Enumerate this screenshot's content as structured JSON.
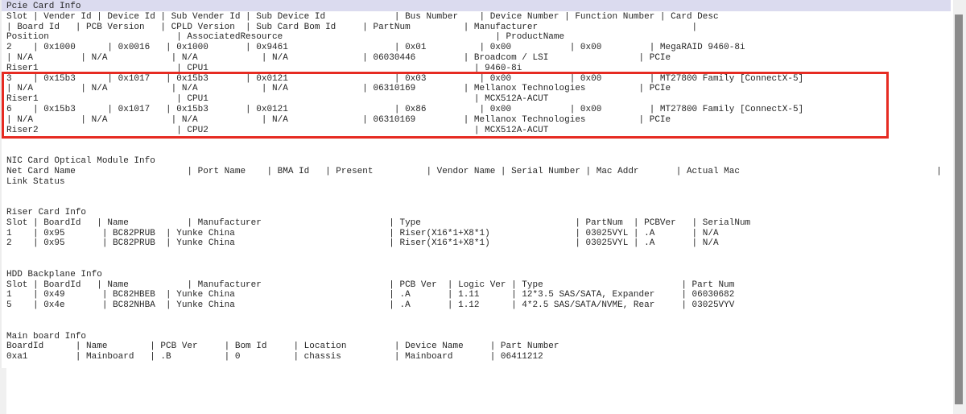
{
  "screen": {
    "lines": [
      "Pcie Card Info",
      "Slot | Vender Id | Device Id | Sub Vender Id | Sub Device Id             | Bus Number    | Device Number | Function Number | Card Desc",
      "| Board Id   | PCB Version   | CPLD Version  | Sub Card Bom Id     | PartNum          | Manufacturer                             |",
      "Position                        | AssociatedResource                                        | ProductName",
      "2    | 0x1000      | 0x0016   | 0x1000       | 0x9461                    | 0x01          | 0x00           | 0x00         | MegaRAID 9460-8i",
      "| N/A         | N/A            | N/A            | N/A              | 06030446         | Broadcom / LSI                 | PCIe",
      "Riser1                          | CPU1                                                  | 9460-8i",
      "3    | 0x15b3      | 0x1017   | 0x15b3       | 0x0121                    | 0x03          | 0x00           | 0x00         | MT27800 Family [ConnectX-5]",
      "| N/A         | N/A            | N/A            | N/A              | 06310169         | Mellanox Technologies          | PCIe",
      "Riser1                          | CPU1                                                  | MCX512A-ACUT",
      "6    | 0x15b3      | 0x1017   | 0x15b3       | 0x0121                    | 0x86          | 0x00           | 0x00         | MT27800 Family [ConnectX-5]",
      "| N/A         | N/A            | N/A            | N/A              | 06310169         | Mellanox Technologies          | PCIe",
      "Riser2                          | CPU2                                                  | MCX512A-ACUT",
      "",
      "",
      "NIC Card Optical Module Info",
      "Net Card Name                     | Port Name    | BMA Id   | Present          | Vendor Name | Serial Number | Mac Addr       | Actual Mac                                     |",
      "Link Status",
      "",
      "",
      "Riser Card Info",
      "Slot | BoardId   | Name           | Manufacturer                        | Type                             | PartNum  | PCBVer   | SerialNum",
      "1    | 0x95       | BC82PRUB  | Yunke China                             | Riser(X16*1+X8*1)                | 03025VYL | .A       | N/A",
      "2    | 0x95       | BC82PRUB  | Yunke China                             | Riser(X16*1+X8*1)                | 03025VYL | .A       | N/A",
      "",
      "",
      "HDD Backplane Info",
      "Slot | BoardId   | Name           | Manufacturer                        | PCB Ver  | Logic Ver | Type                          | Part Num",
      "1    | 0x49       | BC82HBEB  | Yunke China                             | .A       | 1.11      | 12*3.5 SAS/SATA, Expander     | 06030682",
      "5    | 0x4e       | BC82NHBA  | Yunke China                             | .A       | 1.12      | 4*2.5 SAS/SATA/NVME, Rear     | 03025VYV",
      "",
      "",
      "Main board Info",
      "BoardId      | Name        | PCB Ver     | Bom Id     | Location         | Device Name     | Part Number",
      "0xa1         | Mainboard   | .B          | 0          | chassis          | Mainboard       | 06411212"
    ]
  },
  "tables": {
    "pcie_card_info": {
      "title": "Pcie Card Info",
      "columns_line1": [
        "Slot",
        "Vender Id",
        "Device Id",
        "Sub Vender Id",
        "Sub Device Id",
        "Bus Number",
        "Device Number",
        "Function Number",
        "Card Desc"
      ],
      "columns_line2": [
        "Board Id",
        "PCB Version",
        "CPLD Version",
        "Sub Card Bom Id",
        "PartNum",
        "Manufacturer"
      ],
      "columns_line3": [
        "Position",
        "AssociatedResource",
        "ProductName"
      ],
      "rows": [
        {
          "line1": [
            "2",
            "0x1000",
            "0x0016",
            "0x1000",
            "0x9461",
            "0x01",
            "0x00",
            "0x00",
            "MegaRAID 9460-8i"
          ],
          "line2": [
            "N/A",
            "N/A",
            "N/A",
            "N/A",
            "06030446",
            "Broadcom / LSI",
            "PCIe"
          ],
          "line3": [
            "Riser1",
            "CPU1",
            "9460-8i"
          ],
          "highlighted": false
        },
        {
          "line1": [
            "3",
            "0x15b3",
            "0x1017",
            "0x15b3",
            "0x0121",
            "0x03",
            "0x00",
            "0x00",
            "MT27800 Family [ConnectX-5]"
          ],
          "line2": [
            "N/A",
            "N/A",
            "N/A",
            "N/A",
            "06310169",
            "Mellanox Technologies",
            "PCIe"
          ],
          "line3": [
            "Riser1",
            "CPU1",
            "MCX512A-ACUT"
          ],
          "highlighted": true
        },
        {
          "line1": [
            "6",
            "0x15b3",
            "0x1017",
            "0x15b3",
            "0x0121",
            "0x86",
            "0x00",
            "0x00",
            "MT27800 Family [ConnectX-5]"
          ],
          "line2": [
            "N/A",
            "N/A",
            "N/A",
            "N/A",
            "06310169",
            "Mellanox Technologies",
            "PCIe"
          ],
          "line3": [
            "Riser2",
            "CPU2",
            "MCX512A-ACUT"
          ],
          "highlighted": true
        }
      ]
    },
    "nic_card_optical_module_info": {
      "title": "NIC Card Optical Module Info",
      "columns": [
        "Net Card Name",
        "Port Name",
        "BMA Id",
        "Present",
        "Vendor Name",
        "Serial Number",
        "Mac Addr",
        "Actual Mac",
        "Link Status"
      ],
      "rows": []
    },
    "riser_card_info": {
      "title": "Riser Card Info",
      "columns": [
        "Slot",
        "BoardId",
        "Name",
        "Manufacturer",
        "Type",
        "PartNum",
        "PCBVer",
        "SerialNum"
      ],
      "rows": [
        [
          "1",
          "0x95",
          "BC82PRUB",
          "Yunke China",
          "Riser(X16*1+X8*1)",
          "03025VYL",
          ".A",
          "N/A"
        ],
        [
          "2",
          "0x95",
          "BC82PRUB",
          "Yunke China",
          "Riser(X16*1+X8*1)",
          "03025VYL",
          ".A",
          "N/A"
        ]
      ]
    },
    "hdd_backplane_info": {
      "title": "HDD Backplane Info",
      "columns": [
        "Slot",
        "BoardId",
        "Name",
        "Manufacturer",
        "PCB Ver",
        "Logic Ver",
        "Type",
        "Part Num"
      ],
      "rows": [
        [
          "1",
          "0x49",
          "BC82HBEB",
          "Yunke China",
          ".A",
          "1.11",
          "12*3.5 SAS/SATA, Expander",
          "06030682"
        ],
        [
          "5",
          "0x4e",
          "BC82NHBA",
          "Yunke China",
          ".A",
          "1.12",
          "4*2.5 SAS/SATA/NVME, Rear",
          "03025VYV"
        ]
      ]
    },
    "main_board_info": {
      "title": "Main board Info",
      "columns": [
        "BoardId",
        "Name",
        "PCB Ver",
        "Bom Id",
        "Location",
        "Device Name",
        "Part Number"
      ],
      "rows": [
        [
          "0xa1",
          "Mainboard",
          ".B",
          "0",
          "chassis",
          "Mainboard",
          "06411212"
        ]
      ]
    }
  },
  "annotation": {
    "type": "red-box",
    "highlighted_slots": [
      "3",
      "6"
    ],
    "color": "#e62b22"
  },
  "selection": {
    "selected_line": "Pcie Card Info",
    "color": "#dbdbef"
  },
  "colors": {
    "background": "#ffffff",
    "text": "#262626",
    "scrollbar_track": "#f0f0f0",
    "scrollbar_thumb": "#8a8a8a"
  }
}
